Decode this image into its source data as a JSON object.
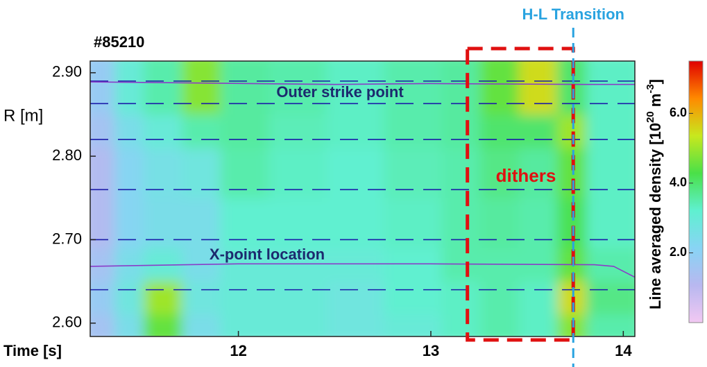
{
  "chart_data": {
    "type": "heatmap",
    "title": "#85210",
    "xlabel": "Time [s]",
    "ylabel": "R [m]",
    "xlim": [
      11.23,
      14.06
    ],
    "ylim": [
      2.584,
      2.914
    ],
    "xticks": [
      12,
      13,
      14
    ],
    "yticks": [
      {
        "value": 2.6,
        "label": "2.60"
      },
      {
        "value": 2.7,
        "label": "2.70"
      },
      {
        "value": 2.8,
        "label": "2.80"
      },
      {
        "value": 2.9,
        "label": "2.90"
      }
    ],
    "x_edges": [
      11.23,
      11.4,
      11.55,
      11.75,
      11.95,
      12.2,
      12.5,
      12.8,
      13.1,
      13.3,
      13.5,
      13.7,
      13.85,
      14.06
    ],
    "y_edges": [
      2.584,
      2.62,
      2.66,
      2.7,
      2.76,
      2.82,
      2.86,
      2.914
    ],
    "z": [
      [
        1.5,
        2.5,
        4.5,
        2.5,
        3,
        3,
        2.8,
        3,
        3.3,
        3.5,
        3.3,
        4.8,
        3.5
      ],
      [
        1.8,
        2.8,
        5,
        2.8,
        3,
        3,
        2.8,
        3.2,
        3.3,
        3.5,
        3.3,
        5.5,
        3.8
      ],
      [
        1.5,
        2.5,
        3,
        2.5,
        3,
        3,
        3,
        3.2,
        3.5,
        3.5,
        3.5,
        4.5,
        3.5
      ],
      [
        1.2,
        2.2,
        2.5,
        2.5,
        3.2,
        3.2,
        3.2,
        3.3,
        3.5,
        3.6,
        3.5,
        4.2,
        3.3
      ],
      [
        1.2,
        2.2,
        2.6,
        2.8,
        3.5,
        3.3,
        3.2,
        3.4,
        3.5,
        3.8,
        3.6,
        4.5,
        3.3
      ],
      [
        1.5,
        2.5,
        3,
        3.5,
        3.6,
        3.4,
        3.3,
        3.5,
        3.6,
        4,
        4,
        5,
        3.3
      ],
      [
        1.8,
        3,
        3.5,
        4.8,
        3.6,
        3.5,
        3.3,
        3.5,
        3.6,
        4.5,
        5.5,
        4,
        3.3
      ]
    ],
    "colormap": [
      "#f2c8f2",
      "#b8b8f0",
      "#88d4f4",
      "#5ff0d0",
      "#4ae048",
      "#c8e81e",
      "#ff8a00",
      "#e00000"
    ],
    "clim": [
      0,
      7.5
    ],
    "cticks": [
      {
        "value": 2,
        "label": "2.0"
      },
      {
        "value": 4,
        "label": "4.0"
      },
      {
        "value": 6,
        "label": "6.0"
      }
    ],
    "colorbar_label": [
      "Line averaged density [10",
      "20",
      " m",
      "-3",
      "]"
    ],
    "hlines": [
      2.89,
      2.863,
      2.82,
      2.76,
      2.7,
      2.64
    ],
    "hline_color": "#1a1aa8",
    "series": [
      {
        "name": "Outer strike point",
        "color": "#8a3cc8",
        "x": [
          11.23,
          12.5,
          13.0,
          13.8,
          14.06
        ],
        "values": [
          2.889,
          2.886,
          2.887,
          2.886,
          2.886
        ]
      },
      {
        "name": "X-point location",
        "color": "#8a3cc8",
        "x": [
          11.23,
          12.0,
          13.0,
          13.85,
          13.95,
          14.06
        ],
        "values": [
          2.668,
          2.671,
          2.671,
          2.67,
          2.668,
          2.655
        ]
      }
    ],
    "annotations": {
      "dithers": {
        "text": "dithers",
        "x": [
          13.19,
          13.74
        ],
        "color": "#e01010"
      },
      "transition": {
        "text": "H-L Transition",
        "x": 13.74,
        "color": "#29a3e0"
      }
    },
    "label_color": "#1c2a6e"
  }
}
